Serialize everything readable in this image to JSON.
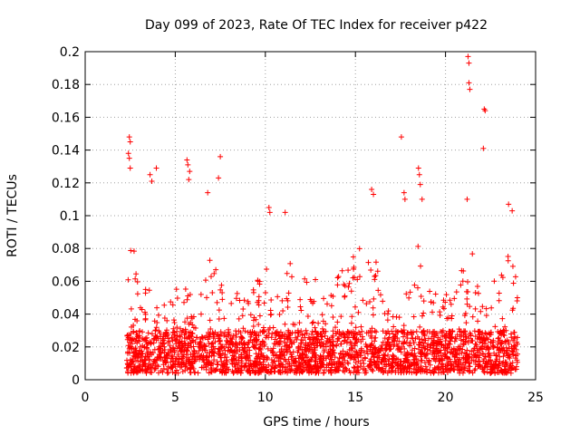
{
  "chart_data": {
    "type": "scatter",
    "title": "Day 099 of 2023, Rate Of TEC Index for receiver p422",
    "xlabel": "GPS time / hours",
    "ylabel": "ROTI / TECUs",
    "xlim": [
      0,
      25
    ],
    "ylim": [
      0,
      0.2
    ],
    "x_ticks": [
      "0",
      "5",
      "10",
      "15",
      "20",
      "25"
    ],
    "y_ticks": [
      "0",
      "0.02",
      "0.04",
      "0.06",
      "0.08",
      "0.1",
      "0.12",
      "0.14",
      "0.16",
      "0.18",
      "0.2"
    ],
    "grid": true,
    "marker": "+",
    "color": "#ff0000",
    "data_start_hour": 2.3,
    "data_end_hour": 24.0,
    "notable_points": [
      {
        "x": 2.45,
        "y": 0.148
      },
      {
        "x": 2.5,
        "y": 0.145
      },
      {
        "x": 2.4,
        "y": 0.138
      },
      {
        "x": 2.45,
        "y": 0.135
      },
      {
        "x": 2.5,
        "y": 0.129
      },
      {
        "x": 3.6,
        "y": 0.125
      },
      {
        "x": 3.7,
        "y": 0.121
      },
      {
        "x": 3.95,
        "y": 0.129
      },
      {
        "x": 5.65,
        "y": 0.134
      },
      {
        "x": 5.7,
        "y": 0.131
      },
      {
        "x": 5.8,
        "y": 0.127
      },
      {
        "x": 5.75,
        "y": 0.122
      },
      {
        "x": 7.5,
        "y": 0.136
      },
      {
        "x": 7.4,
        "y": 0.123
      },
      {
        "x": 6.8,
        "y": 0.114
      },
      {
        "x": 10.2,
        "y": 0.105
      },
      {
        "x": 10.25,
        "y": 0.102
      },
      {
        "x": 11.1,
        "y": 0.102
      },
      {
        "x": 15.9,
        "y": 0.116
      },
      {
        "x": 16.0,
        "y": 0.113
      },
      {
        "x": 17.55,
        "y": 0.148
      },
      {
        "x": 17.7,
        "y": 0.114
      },
      {
        "x": 17.75,
        "y": 0.11
      },
      {
        "x": 18.5,
        "y": 0.129
      },
      {
        "x": 18.55,
        "y": 0.125
      },
      {
        "x": 18.6,
        "y": 0.119
      },
      {
        "x": 18.7,
        "y": 0.11
      },
      {
        "x": 21.25,
        "y": 0.197
      },
      {
        "x": 21.3,
        "y": 0.193
      },
      {
        "x": 21.3,
        "y": 0.181
      },
      {
        "x": 21.35,
        "y": 0.177
      },
      {
        "x": 21.2,
        "y": 0.11
      },
      {
        "x": 22.15,
        "y": 0.165
      },
      {
        "x": 22.2,
        "y": 0.164
      },
      {
        "x": 22.1,
        "y": 0.141
      },
      {
        "x": 23.5,
        "y": 0.107
      },
      {
        "x": 23.7,
        "y": 0.103
      }
    ],
    "activity_profile": [
      {
        "x": 2.3,
        "y": 0.04
      },
      {
        "x": 2.5,
        "y": 0.09
      },
      {
        "x": 3.0,
        "y": 0.065
      },
      {
        "x": 3.5,
        "y": 0.06
      },
      {
        "x": 4.0,
        "y": 0.05
      },
      {
        "x": 4.5,
        "y": 0.045
      },
      {
        "x": 5.0,
        "y": 0.055
      },
      {
        "x": 5.5,
        "y": 0.075
      },
      {
        "x": 6.0,
        "y": 0.065
      },
      {
        "x": 6.5,
        "y": 0.07
      },
      {
        "x": 7.0,
        "y": 0.08
      },
      {
        "x": 7.5,
        "y": 0.06
      },
      {
        "x": 8.0,
        "y": 0.065
      },
      {
        "x": 8.5,
        "y": 0.055
      },
      {
        "x": 9.0,
        "y": 0.05
      },
      {
        "x": 9.5,
        "y": 0.06
      },
      {
        "x": 10.0,
        "y": 0.07
      },
      {
        "x": 10.5,
        "y": 0.065
      },
      {
        "x": 11.0,
        "y": 0.075
      },
      {
        "x": 11.5,
        "y": 0.07
      },
      {
        "x": 12.0,
        "y": 0.06
      },
      {
        "x": 12.5,
        "y": 0.07
      },
      {
        "x": 13.0,
        "y": 0.07
      },
      {
        "x": 13.5,
        "y": 0.06
      },
      {
        "x": 14.0,
        "y": 0.07
      },
      {
        "x": 14.5,
        "y": 0.08
      },
      {
        "x": 15.0,
        "y": 0.085
      },
      {
        "x": 15.5,
        "y": 0.075
      },
      {
        "x": 16.0,
        "y": 0.08
      },
      {
        "x": 16.5,
        "y": 0.06
      },
      {
        "x": 17.0,
        "y": 0.045
      },
      {
        "x": 17.5,
        "y": 0.055
      },
      {
        "x": 18.0,
        "y": 0.06
      },
      {
        "x": 18.5,
        "y": 0.085
      },
      {
        "x": 19.0,
        "y": 0.075
      },
      {
        "x": 19.5,
        "y": 0.06
      },
      {
        "x": 20.0,
        "y": 0.055
      },
      {
        "x": 20.5,
        "y": 0.06
      },
      {
        "x": 21.0,
        "y": 0.07
      },
      {
        "x": 21.5,
        "y": 0.08
      },
      {
        "x": 22.0,
        "y": 0.075
      },
      {
        "x": 22.5,
        "y": 0.065
      },
      {
        "x": 23.0,
        "y": 0.06
      },
      {
        "x": 23.5,
        "y": 0.08
      },
      {
        "x": 24.0,
        "y": 0.065
      }
    ],
    "baseline_range": [
      0.004,
      0.03
    ]
  }
}
